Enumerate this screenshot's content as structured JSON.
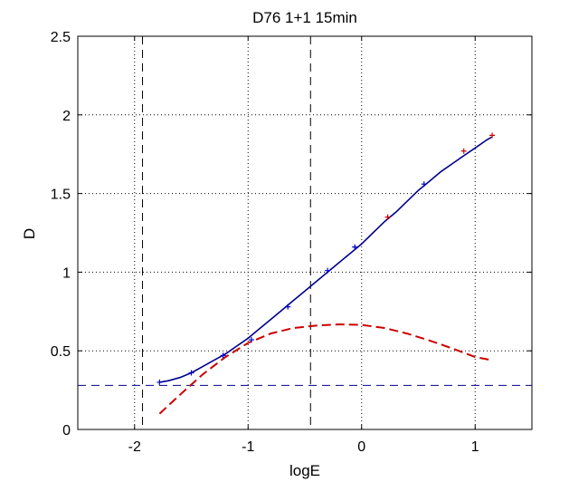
{
  "chart_data": {
    "type": "line",
    "title": "D76 1+1 15min",
    "xlabel": "logE",
    "ylabel": "D",
    "xlim": [
      -2.5,
      1.5
    ],
    "ylim": [
      0,
      2.5
    ],
    "xticks": [
      -2,
      -1,
      0,
      1
    ],
    "xtick_labels": [
      "-2",
      "-1",
      "0",
      "1"
    ],
    "yticks": [
      0,
      0.5,
      1,
      1.5,
      2,
      2.5
    ],
    "ytick_labels": [
      "0",
      "0.5",
      "1",
      "1.5",
      "2",
      "2.5"
    ],
    "grid": true,
    "grid_style": "dotted",
    "series": [
      {
        "style": "solid",
        "color": "#00008b",
        "x": [
          -1.78,
          -1.7,
          -1.6,
          -1.5,
          -1.4,
          -1.3,
          -1.2,
          -1.1,
          -1.0,
          -0.9,
          -0.8,
          -0.7,
          -0.6,
          -0.5,
          -0.4,
          -0.3,
          -0.2,
          -0.1,
          0.0,
          0.1,
          0.2,
          0.3,
          0.4,
          0.5,
          0.6,
          0.7,
          0.8,
          0.9,
          1.0,
          1.1,
          1.15
        ],
        "y": [
          0.3,
          0.31,
          0.33,
          0.36,
          0.4,
          0.44,
          0.48,
          0.53,
          0.58,
          0.64,
          0.7,
          0.76,
          0.82,
          0.88,
          0.94,
          1.0,
          1.06,
          1.12,
          1.18,
          1.25,
          1.32,
          1.38,
          1.45,
          1.52,
          1.58,
          1.64,
          1.69,
          1.74,
          1.79,
          1.84,
          1.86
        ]
      },
      {
        "style": "dashed",
        "color": "#cc0000",
        "x": [
          -1.78,
          -1.6,
          -1.4,
          -1.2,
          -1.0,
          -0.8,
          -0.6,
          -0.4,
          -0.2,
          0.0,
          0.2,
          0.4,
          0.6,
          0.8,
          1.0,
          1.15
        ],
        "y": [
          0.1,
          0.22,
          0.35,
          0.46,
          0.55,
          0.61,
          0.645,
          0.66,
          0.668,
          0.665,
          0.645,
          0.61,
          0.565,
          0.515,
          0.46,
          0.44
        ]
      }
    ],
    "points": [
      {
        "x": -1.78,
        "y": 0.3,
        "color": "#0000cc"
      },
      {
        "x": -1.5,
        "y": 0.36,
        "color": "#0000cc"
      },
      {
        "x": -1.22,
        "y": 0.47,
        "color": "#0000cc"
      },
      {
        "x": -0.97,
        "y": 0.57,
        "color": "#0000cc"
      },
      {
        "x": -0.65,
        "y": 0.78,
        "color": "#0000cc"
      },
      {
        "x": -0.3,
        "y": 1.01,
        "color": "#0000cc"
      },
      {
        "x": -0.06,
        "y": 1.16,
        "color": "#0000cc"
      },
      {
        "x": 0.23,
        "y": 1.35,
        "color": "#cc0000"
      },
      {
        "x": 0.55,
        "y": 1.56,
        "color": "#0000cc"
      },
      {
        "x": 0.9,
        "y": 1.77,
        "color": "#cc0000"
      },
      {
        "x": 1.15,
        "y": 1.87,
        "color": "#cc0000"
      }
    ],
    "reference_lines": [
      {
        "orientation": "horizontal",
        "value": 0.28,
        "color": "#00008b"
      },
      {
        "orientation": "vertical",
        "value": -1.93,
        "color": "#000000"
      },
      {
        "orientation": "vertical",
        "value": -0.45,
        "color": "#000000"
      }
    ]
  }
}
